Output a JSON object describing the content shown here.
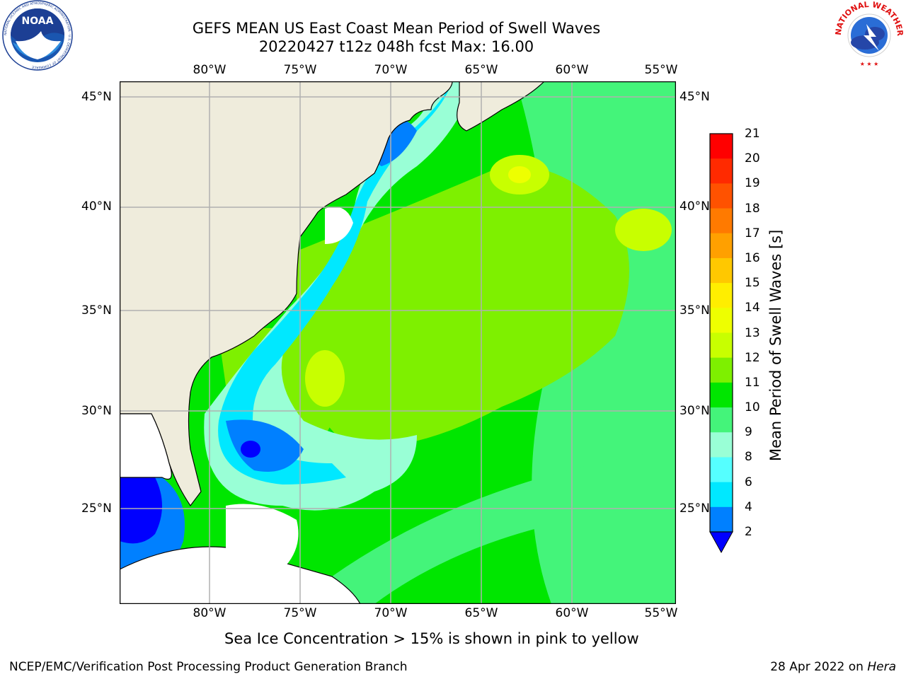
{
  "title": {
    "line1": "GEFS MEAN US East Coast Mean Period of Swell Waves",
    "line2": "20220427 t12z 048h fcst   Max: 16.00"
  },
  "map": {
    "lon_labels": [
      "80°W",
      "75°W",
      "70°W",
      "65°W",
      "60°W",
      "55°W"
    ],
    "lat_labels": [
      "45°N",
      "40°N",
      "35°N",
      "30°N",
      "25°N"
    ],
    "colors": {
      "land": "#efecdc",
      "ocean_green": "#00e600",
      "grid": "#b0b0b0"
    }
  },
  "colorbar": {
    "label": "Mean Period of Swell Waves [s]",
    "ticks": [
      "21",
      "20",
      "19",
      "18",
      "17",
      "16",
      "15",
      "14",
      "13",
      "12",
      "11",
      "10",
      "9",
      "8",
      "6",
      "4",
      "2"
    ],
    "colors": [
      "#ff0000",
      "#ff2a00",
      "#ff5200",
      "#ff7a00",
      "#ffa000",
      "#ffc800",
      "#ffee00",
      "#eeff00",
      "#c8ff00",
      "#7ef000",
      "#00e600",
      "#44f47a",
      "#99ffd6",
      "#55ffff",
      "#00e8ff",
      "#0080ff",
      "#0000ff"
    ]
  },
  "sea_ice_note": "Sea Ice Concentration > 15% is shown in pink to yellow",
  "footer": {
    "left": "NCEP/EMC/Verification Post Processing Product Generation Branch",
    "right_date": "28 Apr 2022 on ",
    "right_host": "Hera"
  },
  "logos": {
    "noaa": {
      "text": "NOAA",
      "ring": "NATIONAL OCEANIC AND ATMOSPHERIC ADMINISTRATION · U.S. DEPARTMENT OF COMMERCE"
    },
    "nws": {
      "text": "NATIONAL WEATHER SERVICE"
    }
  }
}
